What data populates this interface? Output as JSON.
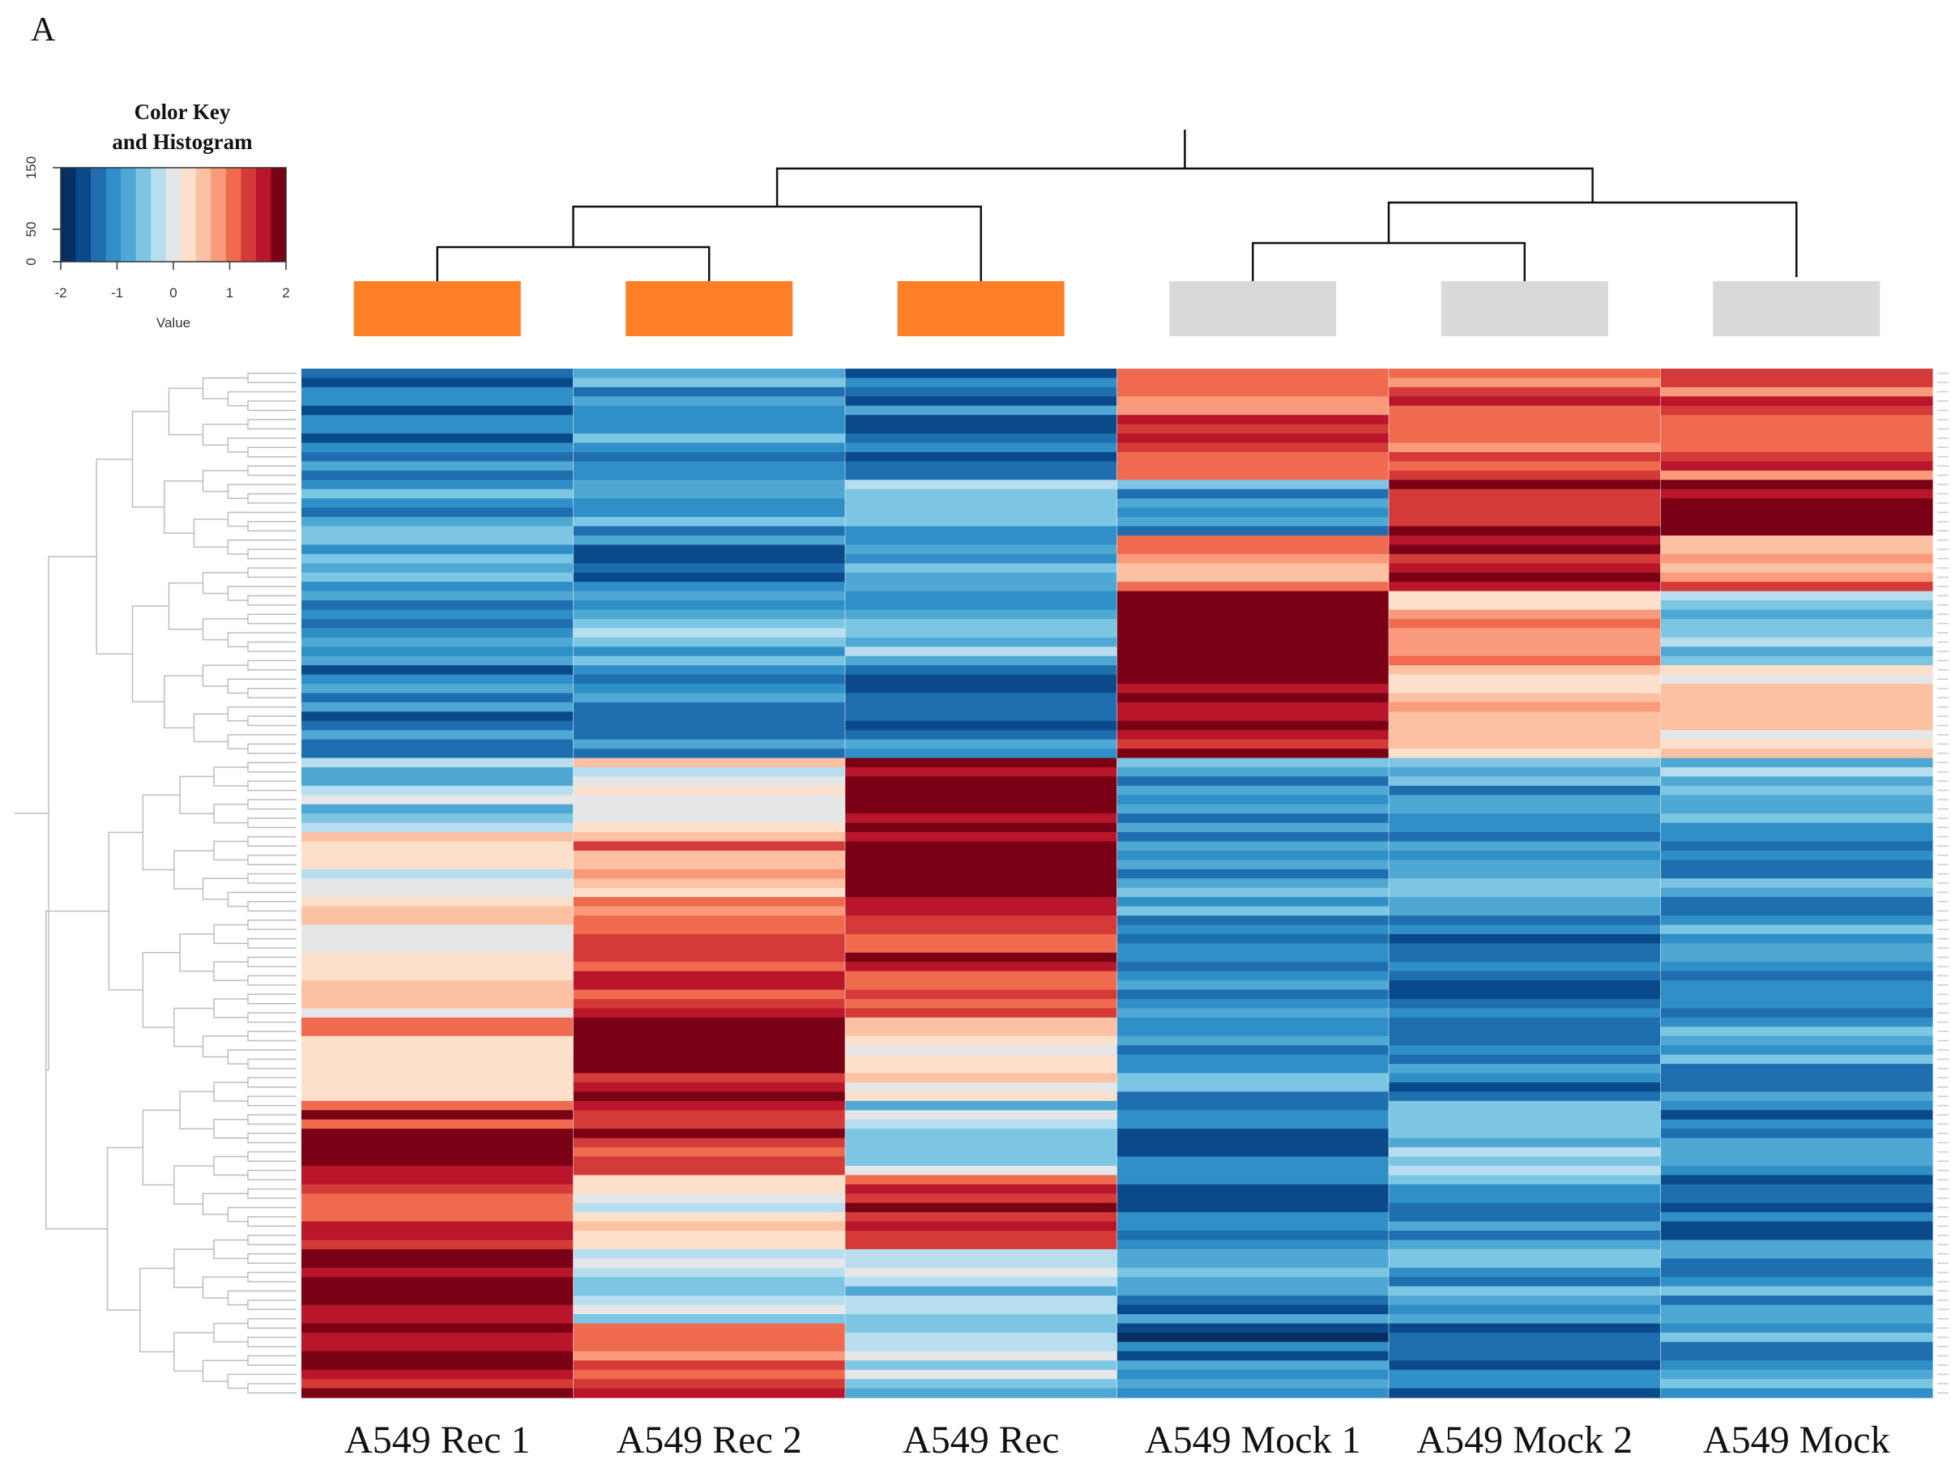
{
  "panel_label": "A",
  "chart_data": {
    "type": "heatmap",
    "color_key": {
      "title_line1": "Color Key",
      "title_line2": "and Histogram",
      "x_label": "Value",
      "x_ticks": [
        "-2",
        "-1",
        "0",
        "1",
        "2"
      ],
      "y_ticks": [
        "0",
        "50",
        "150"
      ],
      "range": [
        -2,
        2
      ],
      "colors": [
        "#053061",
        "#0b4a8a",
        "#1f6eb0",
        "#2f8fc6",
        "#4fa8d4",
        "#7cc6e3",
        "#b7ddef",
        "#e4e6e8",
        "#fde0cc",
        "#fcc0a3",
        "#f99a7b",
        "#ef6a4f",
        "#d43a37",
        "#b9162b",
        "#7a0016"
      ]
    },
    "columns": [
      "A549 Rec 1",
      "A549 Rec 2",
      "A549 Rec",
      "A549 Mock 1",
      "A549 Mock 2",
      "A549 Mock"
    ],
    "column_groups": [
      "Rec",
      "Rec",
      "Rec",
      "Mock",
      "Mock",
      "Mock"
    ],
    "group_colors": {
      "Rec": "#ff7f27",
      "Mock": "#d9d9d9"
    },
    "column_dendrogram": "((((A549 Rec 1, A549 Rec 2), A549 Rec), ((A549 Mock 1, A549 Mock 2), A549 Mock))",
    "row_blocks": [
      {
        "rows": 12,
        "values": [
          -1.2,
          -0.9,
          -1.2,
          1.2,
          1.1,
          1.2
        ]
      },
      {
        "rows": 6,
        "values": [
          -0.8,
          -1.0,
          -0.7,
          -0.9,
          1.6,
          1.7
        ]
      },
      {
        "rows": 6,
        "values": [
          -0.6,
          -1.2,
          -0.8,
          0.9,
          1.8,
          0.9
        ]
      },
      {
        "rows": 8,
        "values": [
          -1.0,
          -0.8,
          -0.8,
          2.0,
          0.7,
          -0.6
        ]
      },
      {
        "rows": 10,
        "values": [
          -1.1,
          -1.0,
          -1.2,
          1.8,
          0.5,
          0.5
        ]
      },
      {
        "rows": 8,
        "values": [
          -0.5,
          0.0,
          2.0,
          -1.0,
          -0.9,
          -0.8
        ]
      },
      {
        "rows": 10,
        "values": [
          0.3,
          0.8,
          1.9,
          -1.0,
          -0.9,
          -1.0
        ]
      },
      {
        "rows": 10,
        "values": [
          0.4,
          1.4,
          1.4,
          -1.1,
          -1.2,
          -1.0
        ]
      },
      {
        "rows": 9,
        "values": [
          0.6,
          1.9,
          0.2,
          -0.9,
          -1.1,
          -0.9
        ]
      },
      {
        "rows": 8,
        "values": [
          1.5,
          1.6,
          -0.4,
          -1.3,
          -0.6,
          -1.2
        ]
      },
      {
        "rows": 8,
        "values": [
          1.3,
          0.2,
          1.6,
          -1.2,
          -0.9,
          -1.2
        ]
      },
      {
        "rows": 8,
        "values": [
          2.0,
          -0.3,
          -0.4,
          -1.1,
          -0.9,
          -0.9
        ]
      },
      {
        "rows": 8,
        "values": [
          1.7,
          1.2,
          -0.4,
          -1.3,
          -1.2,
          -0.9
        ]
      }
    ]
  }
}
